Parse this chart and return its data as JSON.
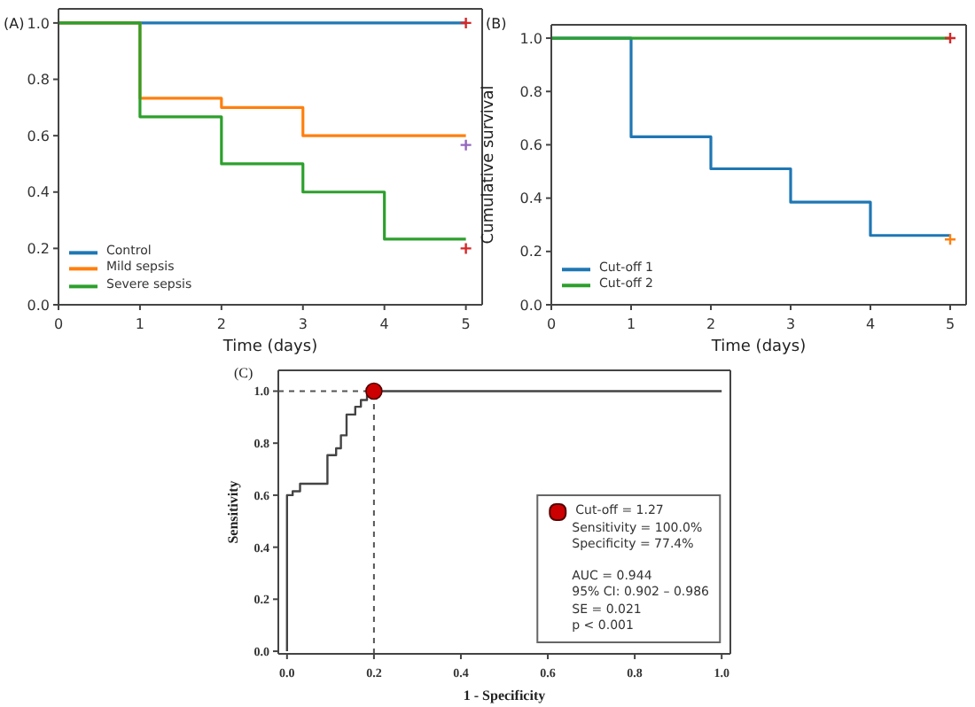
{
  "chart_data": [
    {
      "type": "step",
      "title": "(A)",
      "xlabel": "Time (days)",
      "xlim": [
        0,
        5.2
      ],
      "xticks": [
        0,
        1,
        2,
        3,
        4,
        5
      ],
      "ylim": [
        0,
        1.05
      ],
      "yticks": [
        {
          "value": 0,
          "label": "0.0"
        },
        {
          "value": 0.2,
          "label": "0.2"
        },
        {
          "value": 0.4,
          "label": "0.4"
        },
        {
          "value": 0.6,
          "label": "0.6"
        },
        {
          "value": 0.8,
          "label": "0.8"
        },
        {
          "value": 1,
          "label": "1.0"
        }
      ],
      "legend": "bottom left",
      "series": [
        {
          "name": "Control",
          "color": "#1f77b4",
          "x": [
            0,
            1,
            2,
            3,
            4,
            5
          ],
          "values": [
            1,
            1,
            1,
            1,
            1,
            1
          ]
        },
        {
          "name": "Mild sepsis",
          "color": "#ff7f0e",
          "x": [
            0,
            1,
            2,
            3,
            5
          ],
          "values": [
            1,
            0.733,
            0.7,
            0.6,
            0.6
          ]
        },
        {
          "name": "Severe sepsis",
          "color": "#2ca02c",
          "x": [
            0,
            1,
            2,
            3,
            4,
            5
          ],
          "values": [
            1,
            0.667,
            0.5,
            0.4,
            0.233,
            0.233
          ]
        },
        {
          "type": "scatter",
          "marker": "cross",
          "x": [
            5,
            5,
            5
          ],
          "values": [
            1,
            0.567,
            0.2
          ],
          "colors": [
            "#d62728",
            "#9467bd",
            "#d62728"
          ]
        }
      ]
    },
    {
      "type": "step",
      "title": "(B)",
      "xlabel": "Time (days)",
      "ylabel": "Cumulative survival",
      "xlim": [
        0,
        5.2
      ],
      "xticks": [
        0,
        1,
        2,
        3,
        4,
        5
      ],
      "ylim": [
        0,
        1.05
      ],
      "yticks": [
        {
          "value": 0,
          "label": "0.0"
        },
        {
          "value": 0.2,
          "label": "0.2"
        },
        {
          "value": 0.4,
          "label": "0.4"
        },
        {
          "value": 0.6,
          "label": "0.6"
        },
        {
          "value": 0.8,
          "label": "0.8"
        },
        {
          "value": 1,
          "label": "1.0"
        }
      ],
      "legend": "bottom left",
      "series": [
        {
          "name": "Cut-off 1",
          "color": "#1f77b4",
          "x": [
            0,
            1,
            2,
            3,
            4,
            5
          ],
          "values": [
            1,
            0.63,
            0.51,
            0.385,
            0.26,
            0.26
          ]
        },
        {
          "name": "Cut-off 2",
          "color": "#2ca02c",
          "x": [
            0,
            5
          ],
          "values": [
            1,
            1
          ]
        },
        {
          "type": "scatter",
          "marker": "cross",
          "x": [
            5,
            5
          ],
          "values": [
            1,
            0.245
          ],
          "colors": [
            "#d62728",
            "#ff7f0e"
          ]
        }
      ]
    },
    {
      "type": "step",
      "title": "(C)",
      "xlabel": "1 - Specificity",
      "ylabel": "Sensitivity",
      "xlim": [
        -0.02,
        1.02
      ],
      "xticks": [
        {
          "value": 0,
          "label": "0.0"
        },
        {
          "value": 0.2,
          "label": "0.2"
        },
        {
          "value": 0.4,
          "label": "0.4"
        },
        {
          "value": 0.6,
          "label": "0.6"
        },
        {
          "value": 0.8,
          "label": "0.8"
        },
        {
          "value": 1,
          "label": "1.0"
        }
      ],
      "ylim": [
        -0.01,
        1.08
      ],
      "yticks": [
        {
          "value": 0,
          "label": "0.0"
        },
        {
          "value": 0.2,
          "label": "0.2"
        },
        {
          "value": 0.4,
          "label": "0.4"
        },
        {
          "value": 0.6,
          "label": "0.6"
        },
        {
          "value": 0.8,
          "label": "0.8"
        },
        {
          "value": 1,
          "label": "1.0"
        }
      ],
      "legend": "right",
      "annotations": [
        "Sensitivity = 100.0%",
        "Specificity = 77.4%",
        "AUC = 0.944",
        "95% CI: 0.902 – 0.986",
        "SE = 0.021",
        "p < 0.001"
      ],
      "ref_lines": [
        {
          "axis": "x",
          "value": 0.2,
          "color": "#555555",
          "line_style": "dashed"
        },
        {
          "axis": "y",
          "value": 1,
          "color": "#555555",
          "line_style": "dashed"
        }
      ],
      "series": [
        {
          "color": "#444444",
          "x": [
            0,
            0,
            0.013,
            0.03,
            0.093,
            0.113,
            0.124,
            0.137,
            0.157,
            0.17,
            0.184,
            0.193,
            1
          ],
          "values": [
            0,
            0.6,
            0.615,
            0.644,
            0.754,
            0.78,
            0.83,
            0.91,
            0.94,
            0.966,
            0.985,
            1,
            1
          ]
        },
        {
          "type": "scatter",
          "marker": "circle",
          "name": "Cut-off = 1.27",
          "color": "#cc0000",
          "x": [
            0.2
          ],
          "values": [
            1
          ]
        }
      ]
    }
  ]
}
